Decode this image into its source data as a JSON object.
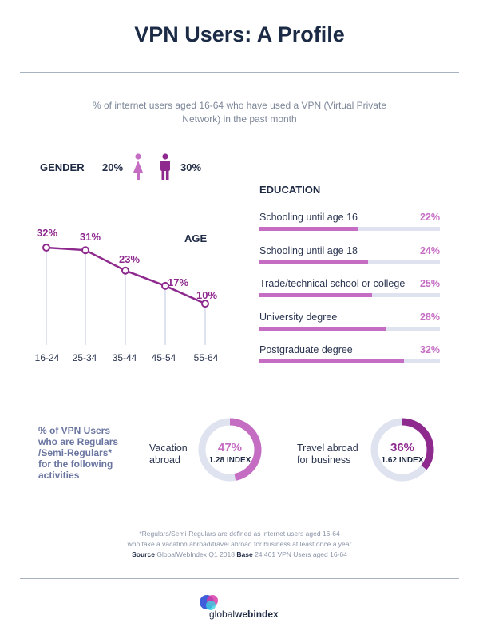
{
  "title": "VPN Users: A Profile",
  "subtitle": "% of internet users aged 16-64 who have used a VPN (Virtual Private Network) in the past month",
  "gender": {
    "label": "GENDER",
    "female_value": "20%",
    "male_value": "30%"
  },
  "colors": {
    "pink": "#c56cc3",
    "purple": "#8e2a8e",
    "track": "#dfe3f0",
    "navy": "#1f2a44"
  },
  "chart_data": [
    {
      "type": "line",
      "title": "AGE",
      "categories": [
        "16-24",
        "25-34",
        "35-44",
        "45-54",
        "55-64"
      ],
      "values": [
        32,
        31,
        23,
        17,
        10
      ],
      "value_labels": [
        "32%",
        "31%",
        "23%",
        "17%",
        "10%"
      ],
      "ylim": [
        0,
        40
      ],
      "grid": true
    },
    {
      "type": "bar",
      "orientation": "horizontal",
      "title": "EDUCATION",
      "categories": [
        "Schooling until age 16",
        "Schooling until age 18",
        "Trade/technical school or college",
        "University degree",
        "Postgraduate degree"
      ],
      "values": [
        22,
        24,
        25,
        28,
        32
      ],
      "value_labels": [
        "22%",
        "24%",
        "25%",
        "28%",
        "32%"
      ],
      "xlim": [
        0,
        40
      ]
    },
    {
      "type": "pie",
      "title": "% of VPN Users who are Regulars /Semi-Regulars* for the following activities",
      "series": [
        {
          "name": "Vacation abroad",
          "value": 47,
          "value_label": "47%",
          "index": "1.28 INDEX",
          "color": "#c56cc3"
        },
        {
          "name": "Travel abroad for business",
          "value": 36,
          "value_label": "36%",
          "index": "1.62 INDEX",
          "color": "#8e2a8e"
        }
      ]
    }
  ],
  "activities": {
    "label_lines": [
      "% of VPN Users",
      "who are Regulars",
      "/Semi-Regulars*",
      "for the following",
      "activities"
    ],
    "vacation_lines": [
      "Vacation",
      "abroad"
    ],
    "business_lines": [
      "Travel abroad",
      "for business"
    ]
  },
  "footnote": {
    "line1": "*Regulars/Semi-Regulars are defined as internet users aged 16-64",
    "line2": "who take a vacation abroad/travel abroad for business at least once a year",
    "source_label": "Source",
    "source_value": "GlobalWebIndex Q1 2018",
    "base_label": "Base",
    "base_value": "24,461 VPN Users aged 16-64"
  },
  "logo": {
    "text_regular": "global",
    "text_bold": "webindex"
  }
}
